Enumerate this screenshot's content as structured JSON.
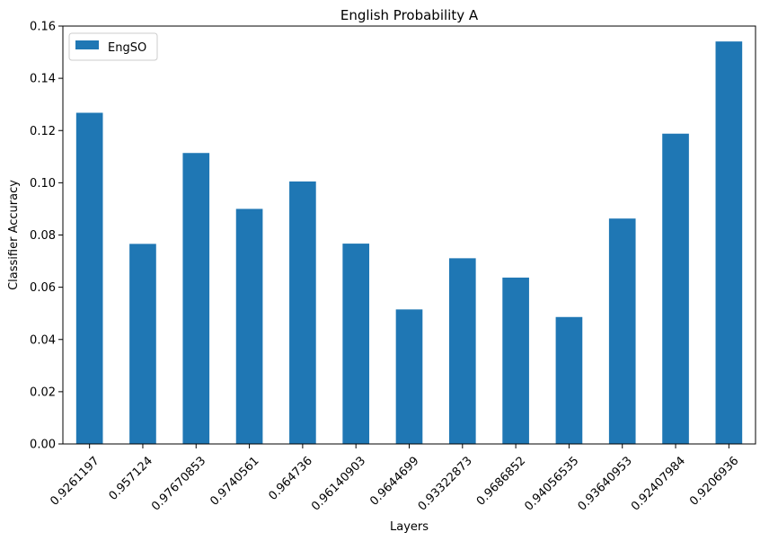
{
  "chart_data": {
    "type": "bar",
    "title": "English Probability A",
    "xlabel": "Layers",
    "ylabel": "Classifier Accuracy",
    "categories": [
      "0.9261197",
      "0.957124",
      "0.97670853",
      "0.9740561",
      "0.964736",
      "0.96140903",
      "0.9644699",
      "0.93322873",
      "0.9686852",
      "0.94056535",
      "0.93640953",
      "0.92407984",
      "0.9206936"
    ],
    "series": [
      {
        "name": "EngSO",
        "color": "#1f77b4",
        "values": [
          0.1268,
          0.0766,
          0.1114,
          0.09,
          0.1005,
          0.0767,
          0.0515,
          0.0711,
          0.0637,
          0.0486,
          0.0863,
          0.1188,
          0.1541
        ]
      }
    ],
    "ylim": [
      0,
      0.16
    ],
    "yticks": [
      0.0,
      0.02,
      0.04,
      0.06,
      0.08,
      0.1,
      0.12,
      0.14,
      0.16
    ],
    "ytick_labels": [
      "0.00",
      "0.02",
      "0.04",
      "0.06",
      "0.08",
      "0.10",
      "0.12",
      "0.14",
      "0.16"
    ],
    "legend_position": "top-left",
    "grid": false
  }
}
